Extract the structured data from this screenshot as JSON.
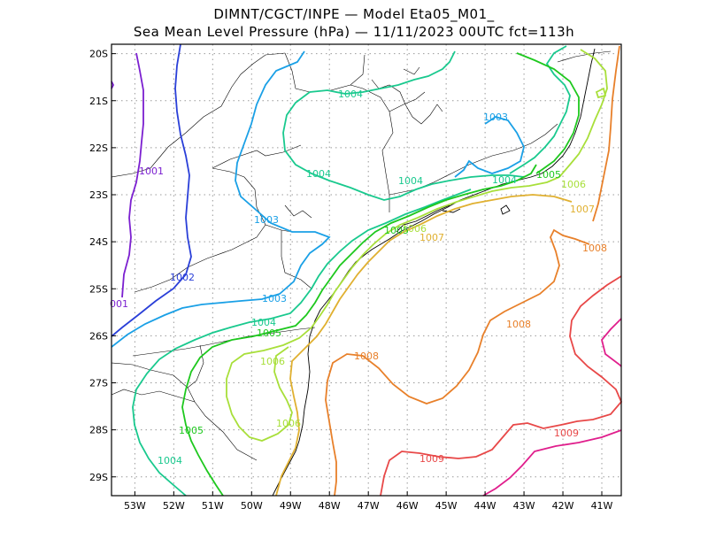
{
  "header": {
    "line1": "DIMNT/CGCT/INPE —  Model Eta05_M01_",
    "line2": "Sea Mean Level Pressure (hPa) — 11/11/2023 00UTC fct=113h"
  },
  "map": {
    "lon_ticks": [
      "53W",
      "52W",
      "51W",
      "50W",
      "49W",
      "48W",
      "47W",
      "46W",
      "45W",
      "44W",
      "43W",
      "42W",
      "41W"
    ],
    "lat_ticks": [
      "20S",
      "21S",
      "22S",
      "23S",
      "24S",
      "25S",
      "26S",
      "27S",
      "28S",
      "29S"
    ],
    "lon_range": [
      -53.6,
      -40.5
    ],
    "lat_range": [
      -19.8,
      -29.4
    ],
    "grid": true
  },
  "contours": [
    {
      "value": 1001,
      "color": "#7b1fd0",
      "labels": [
        "1001",
        "001"
      ]
    },
    {
      "value": 1002,
      "color": "#2a3fd8",
      "labels": [
        "1002"
      ]
    },
    {
      "value": 1003,
      "color": "#1aa0e6",
      "labels": [
        "1003",
        "1003",
        "1003"
      ]
    },
    {
      "value": 1004,
      "color": "#19c98e",
      "labels": [
        "1004",
        "1004",
        "1004",
        "1004",
        "1004",
        "1004"
      ]
    },
    {
      "value": 1005,
      "color": "#1ec81e",
      "labels": [
        "1005",
        "1005",
        "1005",
        "1005"
      ]
    },
    {
      "value": 1006,
      "color": "#a8df3a",
      "labels": [
        "1006",
        "1006",
        "1006",
        "1006"
      ]
    },
    {
      "value": 1007,
      "color": "#e0b030",
      "labels": [
        "1007",
        "1007"
      ]
    },
    {
      "value": 1008,
      "color": "#e8802a",
      "labels": [
        "1008",
        "1008",
        "1008"
      ]
    },
    {
      "value": 1009,
      "color": "#e84848",
      "labels": [
        "1009",
        "1009"
      ]
    },
    {
      "value": 1010,
      "color": "#e01e8c",
      "labels": []
    }
  ]
}
